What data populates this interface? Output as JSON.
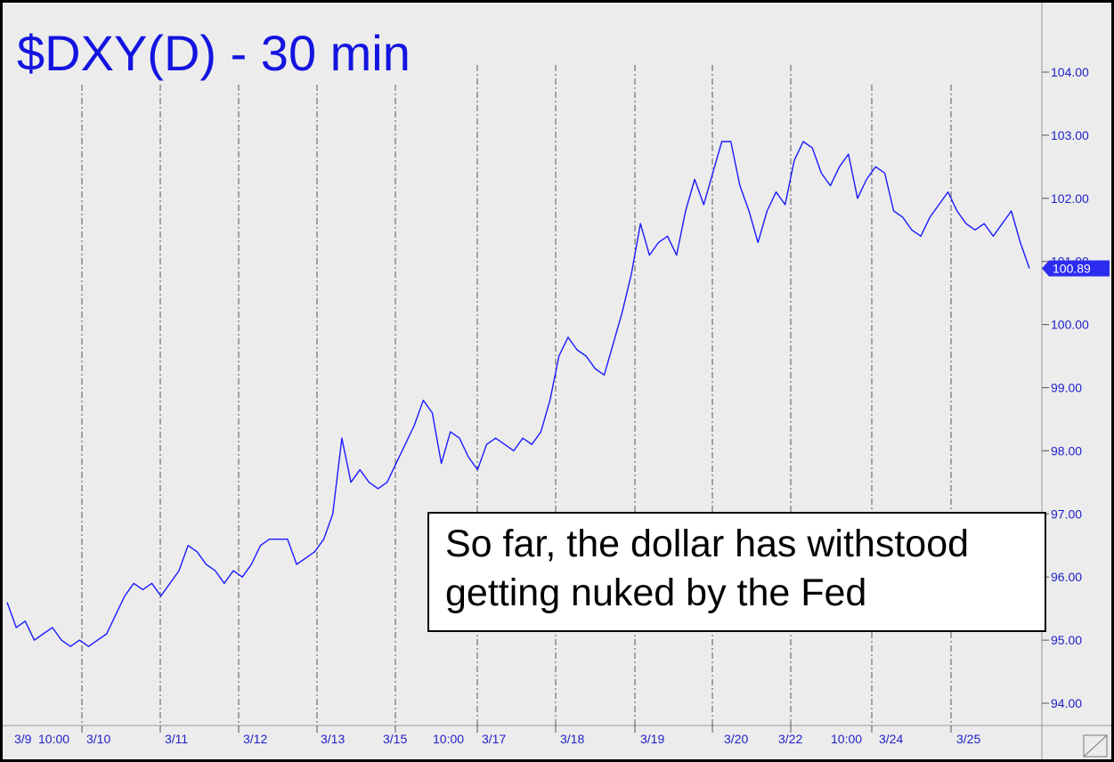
{
  "chart_data": {
    "type": "line",
    "title": "$DXY(D) - 30 min",
    "ylim": [
      93.6,
      104.9
    ],
    "yticks": [
      94,
      95,
      96,
      97,
      98,
      99,
      100,
      101,
      102,
      103,
      104
    ],
    "ytick_labels": [
      "94.00",
      "95.00",
      "96.00",
      "97.00",
      "98.00",
      "99.00",
      "100.00",
      "101.00",
      "102.00",
      "103.00",
      "104.00"
    ],
    "x_labels": [
      "3/9",
      "10:00",
      "3/10",
      "3/11",
      "3/12",
      "3/13",
      "3/15",
      "10:00",
      "3/17",
      "3/18",
      "3/19",
      "3/20",
      "3/22",
      "10:00",
      "3/24",
      "3/25"
    ],
    "last_value": 100.89,
    "last_value_label": "100.89",
    "annotation": [
      "So far, the dollar has withstood",
      "getting nuked by the Fed"
    ],
    "series": [
      {
        "color": "#1a1aff",
        "values": [
          95.6,
          95.2,
          95.3,
          95.0,
          95.1,
          95.2,
          95.0,
          94.9,
          95.0,
          94.9,
          95.0,
          95.1,
          95.4,
          95.7,
          95.9,
          95.8,
          95.9,
          95.7,
          95.9,
          96.1,
          96.5,
          96.4,
          96.2,
          96.1,
          95.9,
          96.1,
          96.0,
          96.2,
          96.5,
          96.6,
          96.6,
          96.6,
          96.2,
          96.3,
          96.4,
          96.6,
          97.0,
          98.2,
          97.5,
          97.7,
          97.5,
          97.4,
          97.5,
          97.8,
          98.1,
          98.4,
          98.8,
          98.6,
          97.8,
          98.3,
          98.2,
          97.9,
          97.7,
          98.1,
          98.2,
          98.1,
          98.0,
          98.2,
          98.1,
          98.3,
          98.8,
          99.5,
          99.8,
          99.6,
          99.5,
          99.3,
          99.2,
          99.7,
          100.2,
          100.8,
          101.6,
          101.1,
          101.3,
          101.4,
          101.1,
          101.8,
          102.3,
          101.9,
          102.4,
          102.9,
          102.9,
          102.2,
          101.8,
          101.3,
          101.8,
          102.1,
          101.9,
          102.6,
          102.9,
          102.8,
          102.4,
          102.2,
          102.5,
          102.7,
          102.0,
          102.3,
          102.5,
          102.4,
          101.8,
          101.7,
          101.5,
          101.4,
          101.7,
          101.9,
          102.1,
          101.8,
          101.6,
          101.5,
          101.6,
          101.4,
          101.6,
          101.8,
          101.3,
          100.89
        ]
      }
    ]
  }
}
